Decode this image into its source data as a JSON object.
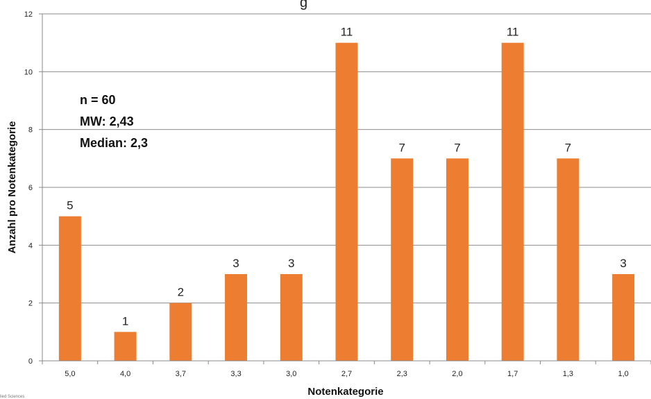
{
  "chart_data": {
    "type": "bar",
    "title_partial": "g",
    "xlabel": "Notenkategorie",
    "ylabel": "Anzahl pro Notenkategorie",
    "categories": [
      "5,0",
      "4,0",
      "3,7",
      "3,3",
      "3,0",
      "2,7",
      "2,3",
      "2,0",
      "1,7",
      "1,3",
      "1,0"
    ],
    "values": [
      5,
      1,
      2,
      3,
      3,
      11,
      7,
      7,
      11,
      7,
      3
    ],
    "ylim": [
      0,
      12
    ],
    "yticks": [
      0,
      2,
      4,
      6,
      8,
      10,
      12
    ],
    "grid": true,
    "legend": "none",
    "bar_color": "#ED7D31",
    "annotations": [
      "n = 60",
      "MW: 2,43",
      "Median: 2,3"
    ]
  },
  "footer_text": "lied Sciences"
}
